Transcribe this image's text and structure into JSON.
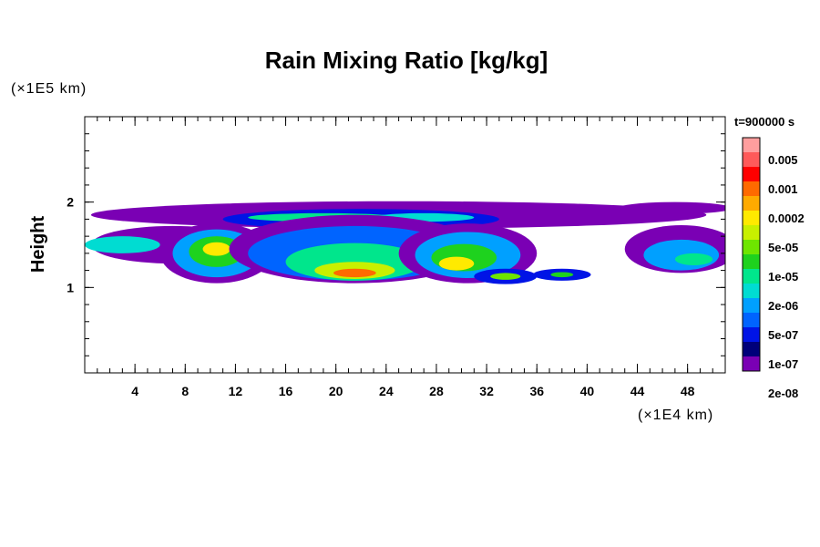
{
  "chart_data": {
    "type": "heatmap",
    "title": "Rain Mixing Ratio [kg/kg]",
    "ylabel": "Height",
    "xlabel": "",
    "x_unit_label": "(×1E4 km)",
    "y_unit_label": "(×1E5 km)",
    "time_label": "t=900000 s",
    "xlim": [
      0,
      51
    ],
    "ylim": [
      0,
      3
    ],
    "x_ticks": [
      4,
      8,
      12,
      16,
      20,
      24,
      28,
      32,
      36,
      40,
      44,
      48
    ],
    "y_ticks": [
      1,
      2
    ],
    "x_minor_step": 1,
    "y_minor_step": 0.2,
    "colorbar": {
      "labels": [
        "0.005",
        "0.001",
        "0.0002",
        "5e-05",
        "1e-05",
        "2e-06",
        "5e-07",
        "1e-07",
        "2e-08"
      ],
      "colors": [
        "#ff9e9e",
        "#ff5a5a",
        "#ff0000",
        "#ff6a00",
        "#ffaa00",
        "#ffea00",
        "#c8f000",
        "#6ee600",
        "#1ed21e",
        "#00e68c",
        "#00dcd2",
        "#00a0ff",
        "#0064ff",
        "#0014e6",
        "#00007a",
        "#7a00b4"
      ]
    },
    "features": [
      {
        "x": 25,
        "y": 1.85,
        "rx": 24.5,
        "ry": 0.16,
        "level": 0
      },
      {
        "x": 47,
        "y": 1.93,
        "rx": 4.5,
        "ry": 0.07,
        "level": 0
      },
      {
        "x": 22,
        "y": 1.8,
        "rx": 11,
        "ry": 0.12,
        "level": 2
      },
      {
        "x": 19,
        "y": 1.82,
        "rx": 6,
        "ry": 0.05,
        "level": 6
      },
      {
        "x": 27,
        "y": 1.82,
        "rx": 4,
        "ry": 0.05,
        "level": 5
      },
      {
        "x": 7,
        "y": 1.5,
        "rx": 6.5,
        "ry": 0.22,
        "level": 0
      },
      {
        "x": 3,
        "y": 1.5,
        "rx": 3,
        "ry": 0.1,
        "level": 5
      },
      {
        "x": 10.5,
        "y": 1.4,
        "rx": 4.5,
        "ry": 0.35,
        "level": 0
      },
      {
        "x": 10.5,
        "y": 1.4,
        "rx": 3.5,
        "ry": 0.28,
        "level": 4
      },
      {
        "x": 10.5,
        "y": 1.42,
        "rx": 2.2,
        "ry": 0.18,
        "level": 7
      },
      {
        "x": 10.5,
        "y": 1.45,
        "rx": 1.1,
        "ry": 0.08,
        "level": 10
      },
      {
        "x": 21.5,
        "y": 1.45,
        "rx": 10,
        "ry": 0.4,
        "level": 0
      },
      {
        "x": 21.5,
        "y": 1.4,
        "rx": 8.5,
        "ry": 0.32,
        "level": 3
      },
      {
        "x": 21.5,
        "y": 1.3,
        "rx": 5.5,
        "ry": 0.22,
        "level": 6
      },
      {
        "x": 21.5,
        "y": 1.2,
        "rx": 3.2,
        "ry": 0.1,
        "level": 9
      },
      {
        "x": 21.5,
        "y": 1.17,
        "rx": 1.7,
        "ry": 0.05,
        "level": 12
      },
      {
        "x": 30.5,
        "y": 1.4,
        "rx": 5.5,
        "ry": 0.35,
        "level": 0
      },
      {
        "x": 30.5,
        "y": 1.38,
        "rx": 4.2,
        "ry": 0.27,
        "level": 4
      },
      {
        "x": 30.2,
        "y": 1.35,
        "rx": 2.6,
        "ry": 0.16,
        "level": 7
      },
      {
        "x": 29.6,
        "y": 1.28,
        "rx": 1.4,
        "ry": 0.08,
        "level": 10
      },
      {
        "x": 33.5,
        "y": 1.13,
        "rx": 2.5,
        "ry": 0.09,
        "level": 2
      },
      {
        "x": 33.5,
        "y": 1.13,
        "rx": 1.2,
        "ry": 0.04,
        "level": 8
      },
      {
        "x": 38,
        "y": 1.15,
        "rx": 2.3,
        "ry": 0.07,
        "level": 2
      },
      {
        "x": 38,
        "y": 1.15,
        "rx": 0.9,
        "ry": 0.03,
        "level": 7
      },
      {
        "x": 47.5,
        "y": 1.45,
        "rx": 4.5,
        "ry": 0.28,
        "level": 0
      },
      {
        "x": 47.5,
        "y": 1.38,
        "rx": 3,
        "ry": 0.18,
        "level": 4
      },
      {
        "x": 48.5,
        "y": 1.33,
        "rx": 1.5,
        "ry": 0.07,
        "level": 6
      }
    ]
  }
}
